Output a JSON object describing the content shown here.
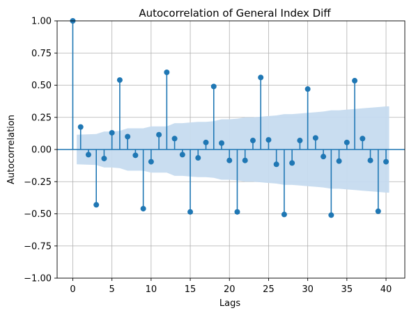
{
  "chart_data": {
    "type": "stem",
    "title": "Autocorrelation of General Index Diff",
    "xlabel": "Lags",
    "ylabel": "Autocorrelation",
    "xlim": [
      -2,
      42.4
    ],
    "ylim": [
      -1.0,
      1.0
    ],
    "xticks": [
      0,
      5,
      10,
      15,
      20,
      25,
      30,
      35,
      40
    ],
    "yticks": [
      -1.0,
      -0.75,
      -0.5,
      -0.25,
      0.0,
      0.25,
      0.5,
      0.75,
      1.0
    ],
    "xtick_labels": [
      "0",
      "5",
      "10",
      "15",
      "20",
      "25",
      "30",
      "35",
      "40"
    ],
    "ytick_labels": [
      "−1.00",
      "−0.75",
      "−0.50",
      "−0.25",
      "0.00",
      "0.25",
      "0.50",
      "0.75",
      "1.00"
    ],
    "grid": true,
    "stem_color": "#1f77b4",
    "band_color": "#c6dbef",
    "lags": [
      0,
      1,
      2,
      3,
      4,
      5,
      6,
      7,
      8,
      9,
      10,
      11,
      12,
      13,
      14,
      15,
      16,
      17,
      18,
      19,
      20,
      21,
      22,
      23,
      24,
      25,
      26,
      27,
      28,
      29,
      30,
      31,
      32,
      33,
      34,
      35,
      36,
      37,
      38,
      39,
      40
    ],
    "values": [
      1.0,
      0.175,
      -0.04,
      -0.43,
      -0.07,
      0.13,
      0.54,
      0.1,
      -0.045,
      -0.46,
      -0.095,
      0.115,
      0.6,
      0.085,
      -0.04,
      -0.485,
      -0.065,
      0.055,
      0.49,
      0.05,
      -0.085,
      -0.485,
      -0.085,
      0.07,
      0.56,
      0.075,
      -0.115,
      -0.505,
      -0.105,
      0.07,
      0.47,
      0.09,
      -0.055,
      -0.51,
      -0.09,
      0.055,
      0.535,
      0.085,
      -0.085,
      -0.48,
      -0.095
    ],
    "confidence_band": [
      0.0,
      0.115,
      0.118,
      0.12,
      0.14,
      0.14,
      0.145,
      0.165,
      0.165,
      0.165,
      0.18,
      0.18,
      0.18,
      0.205,
      0.205,
      0.21,
      0.215,
      0.215,
      0.22,
      0.235,
      0.235,
      0.24,
      0.25,
      0.25,
      0.255,
      0.26,
      0.265,
      0.275,
      0.275,
      0.28,
      0.285,
      0.29,
      0.295,
      0.305,
      0.305,
      0.31,
      0.315,
      0.32,
      0.325,
      0.33,
      0.335
    ]
  }
}
